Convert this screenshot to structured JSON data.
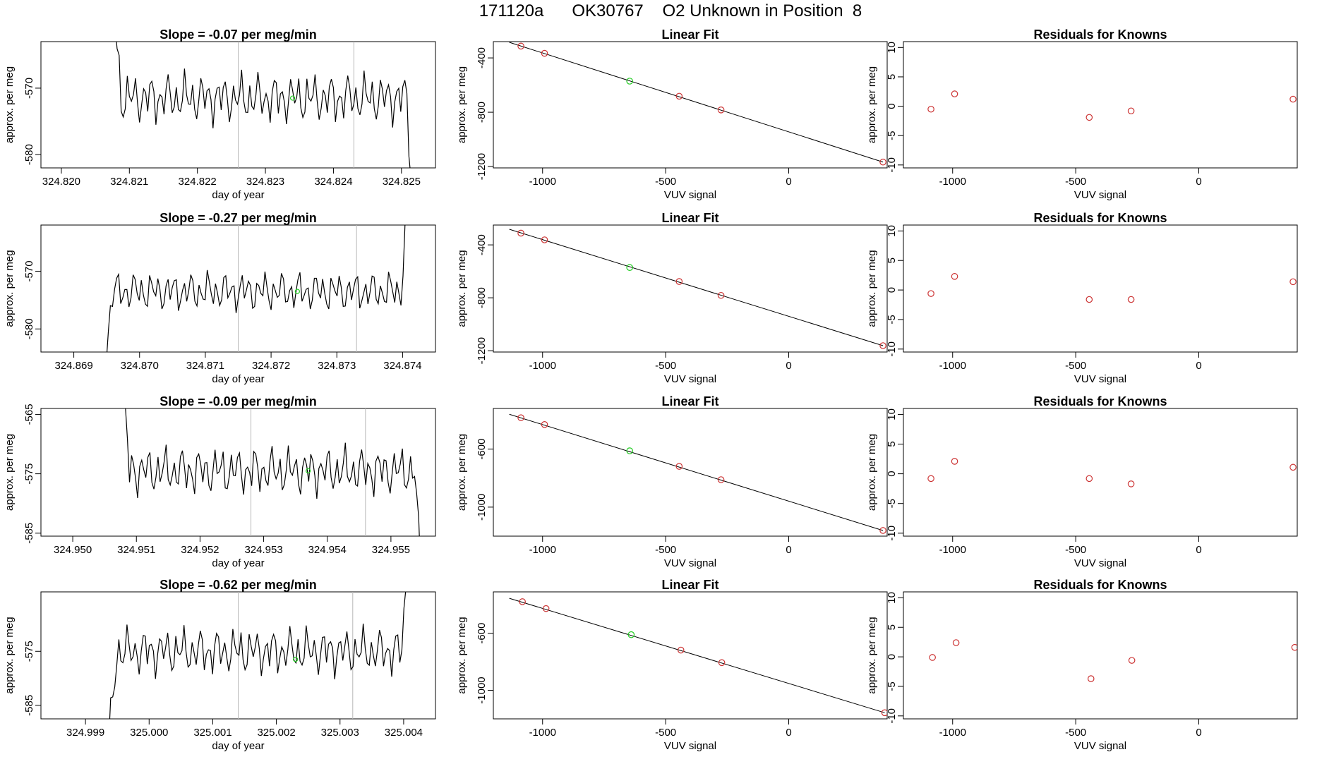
{
  "page": {
    "title": "171120a      OK30767    O2 Unknown in Position  8"
  },
  "colors": {
    "axis": "#000000",
    "line": "#000000",
    "vline": "#b8b8b8",
    "known": "#cc3333",
    "unknown": "#22cc22"
  },
  "labels": {
    "ylabel_left": "approx. per meg",
    "xlabel_time": "day of year",
    "title_fit": "Linear Fit",
    "title_resid": "Residuals for Knowns",
    "xlabel_vuv": "VUV signal"
  },
  "chart_data": [
    {
      "row": 0,
      "time": {
        "type": "line",
        "title": "Slope =  -0.07  per meg/min",
        "xlabel": "day of year",
        "ylabel": "approx. per meg",
        "xlim": [
          324.8197,
          324.8255
        ],
        "ylim": [
          -582,
          -563
        ],
        "xticks": [
          324.82,
          324.821,
          324.822,
          324.823,
          324.824,
          324.825
        ],
        "xtick_labels": [
          "324.820",
          "324.821",
          "324.822",
          "324.823",
          "324.824",
          "324.825"
        ],
        "yticks": [
          -580,
          -570
        ],
        "ytick_labels": [
          "-580",
          "-570"
        ],
        "vlines": [
          324.8226,
          324.8243
        ],
        "trace_start": 324.8207,
        "trace_end": 324.8252,
        "trace_mean": -571.5,
        "trace_amp": 2.4,
        "unknown_point": {
          "x": 324.8234,
          "y": -571.5
        }
      },
      "fit": {
        "type": "scatter",
        "title": "Linear Fit",
        "xlabel": "VUV signal",
        "ylabel": "approx. per meg",
        "xlim": [
          -1200,
          400
        ],
        "ylim": [
          -1210,
          -280
        ],
        "xticks": [
          -1000,
          -500,
          0
        ],
        "xtick_labels": [
          "-1000",
          "-500",
          "0"
        ],
        "yticks": [
          -1200,
          -800,
          -400
        ],
        "ytick_labels": [
          "-1200",
          "-800",
          "-400"
        ],
        "known_x": [
          -1088,
          -992,
          -445,
          -275,
          383
        ],
        "known_y": [
          -313,
          -366,
          -682,
          -783,
          -1167
        ],
        "unknown": {
          "x": -646,
          "y": -571
        },
        "fit_line": {
          "x": [
            -1135,
            383
          ],
          "y": [
            -285,
            -1167
          ]
        }
      },
      "resid": {
        "type": "scatter",
        "title": "Residuals for Knowns",
        "xlabel": "VUV signal",
        "ylabel": "approx. per meg",
        "xlim": [
          -1200,
          400
        ],
        "ylim": [
          -10.5,
          11
        ],
        "xticks": [
          -1000,
          -500,
          0
        ],
        "xtick_labels": [
          "-1000",
          "-500",
          "0"
        ],
        "yticks": [
          -10,
          -5,
          0,
          5,
          10
        ],
        "ytick_labels": [
          "-10",
          "-5",
          "0",
          "5",
          "10"
        ],
        "x": [
          -1088,
          -992,
          -445,
          -275,
          383
        ],
        "y": [
          -0.5,
          2.1,
          -1.9,
          -0.8,
          1.2
        ]
      }
    },
    {
      "row": 1,
      "time": {
        "type": "line",
        "title": "Slope =  -0.27  per meg/min",
        "xlabel": "day of year",
        "ylabel": "approx. per meg",
        "xlim": [
          324.8685,
          324.8745
        ],
        "ylim": [
          -584,
          -562
        ],
        "xticks": [
          324.869,
          324.87,
          324.871,
          324.872,
          324.873,
          324.874
        ],
        "xtick_labels": [
          "324.869",
          "324.870",
          "324.871",
          "324.872",
          "324.873",
          "324.874"
        ],
        "yticks": [
          -580,
          -570
        ],
        "ytick_labels": [
          "-580",
          "-570"
        ],
        "vlines": [
          324.8715,
          324.8733
        ],
        "trace_start": 324.8694,
        "trace_end": 324.8741,
        "trace_mean": -573.5,
        "trace_amp": 2.2,
        "unknown_point": {
          "x": 324.8724,
          "y": -573.5
        }
      },
      "fit": {
        "type": "scatter",
        "title": "Linear Fit",
        "xlabel": "VUV signal",
        "ylabel": "approx. per meg",
        "xlim": [
          -1200,
          400
        ],
        "ylim": [
          -1210,
          -250
        ],
        "xticks": [
          -1000,
          -500,
          0
        ],
        "xtick_labels": [
          "-1000",
          "-500",
          "0"
        ],
        "yticks": [
          -1200,
          -800,
          -400
        ],
        "ytick_labels": [
          "-1200",
          "-800",
          "-400"
        ],
        "known_x": [
          -1088,
          -992,
          -445,
          -275,
          383
        ],
        "known_y": [
          -311,
          -362,
          -677,
          -782,
          -1162
        ],
        "unknown": {
          "x": -646,
          "y": -571
        },
        "fit_line": {
          "x": [
            -1135,
            383
          ],
          "y": [
            -282,
            -1162
          ]
        }
      },
      "resid": {
        "type": "scatter",
        "title": "Residuals for Knowns",
        "xlabel": "VUV signal",
        "ylabel": "approx. per meg",
        "xlim": [
          -1200,
          400
        ],
        "ylim": [
          -10.5,
          11
        ],
        "xticks": [
          -1000,
          -500,
          0
        ],
        "xtick_labels": [
          "-1000",
          "-500",
          "0"
        ],
        "yticks": [
          -10,
          -5,
          0,
          5,
          10
        ],
        "ytick_labels": [
          "-10",
          "-5",
          "0",
          "5",
          "10"
        ],
        "x": [
          -1088,
          -992,
          -445,
          -275,
          383
        ],
        "y": [
          -0.6,
          2.3,
          -1.6,
          -1.6,
          1.4
        ]
      }
    },
    {
      "row": 2,
      "time": {
        "type": "line",
        "title": "Slope =  -0.09  per meg/min",
        "xlabel": "day of year",
        "ylabel": "approx. per meg",
        "xlim": [
          324.9495,
          324.9557
        ],
        "ylim": [
          -585.5,
          -564
        ],
        "xticks": [
          324.95,
          324.951,
          324.952,
          324.953,
          324.954,
          324.955
        ],
        "xtick_labels": [
          "324.950",
          "324.951",
          "324.952",
          "324.953",
          "324.954",
          "324.955"
        ],
        "yticks": [
          -585,
          -575,
          -565
        ],
        "ytick_labels": [
          "-585",
          "-575",
          "-565"
        ],
        "vlines": [
          324.9528,
          324.9546
        ],
        "trace_start": 324.9507,
        "trace_end": 324.9555,
        "trace_mean": -574.5,
        "trace_amp": 2.6,
        "unknown_point": {
          "x": 324.9537,
          "y": -574.5
        }
      },
      "fit": {
        "type": "scatter",
        "title": "Linear Fit",
        "xlabel": "VUV signal",
        "ylabel": "approx. per meg",
        "xlim": [
          -1200,
          400
        ],
        "ylim": [
          -1200,
          -320
        ],
        "xticks": [
          -1000,
          -500,
          0
        ],
        "xtick_labels": [
          "-1000",
          "-500",
          "0"
        ],
        "yticks": [
          -1000,
          -600
        ],
        "ytick_labels": [
          "-1000",
          "-600"
        ],
        "known_x": [
          -1088,
          -992,
          -445,
          -275,
          383
        ],
        "known_y": [
          -384,
          -431,
          -719,
          -811,
          -1161
        ],
        "unknown": {
          "x": -646,
          "y": -612
        },
        "fit_line": {
          "x": [
            -1135,
            383
          ],
          "y": [
            -360,
            -1161
          ]
        }
      },
      "resid": {
        "type": "scatter",
        "title": "Residuals for Knowns",
        "xlabel": "VUV signal",
        "ylabel": "approx. per meg",
        "xlim": [
          -1200,
          400
        ],
        "ylim": [
          -10.5,
          11
        ],
        "xticks": [
          -1000,
          -500,
          0
        ],
        "xtick_labels": [
          "-1000",
          "-500",
          "0"
        ],
        "yticks": [
          -10,
          -5,
          0,
          5,
          10
        ],
        "ytick_labels": [
          "-10",
          "-5",
          "0",
          "5",
          "10"
        ],
        "x": [
          -1088,
          -992,
          -445,
          -275,
          383
        ],
        "y": [
          -0.8,
          2.1,
          -0.8,
          -1.7,
          1.1
        ]
      }
    },
    {
      "row": 3,
      "time": {
        "type": "line",
        "title": "Slope =  -0.62  per meg/min",
        "xlabel": "day of year",
        "ylabel": "approx. per meg",
        "xlim": [
          324.9983,
          325.0045
        ],
        "ylim": [
          -587.5,
          -564
        ],
        "xticks": [
          324.999,
          325.0,
          325.001,
          325.002,
          325.003,
          325.004
        ],
        "xtick_labels": [
          "324.999",
          "325.000",
          "325.001",
          "325.002",
          "325.003",
          "325.004"
        ],
        "yticks": [
          -585,
          -575
        ],
        "ytick_labels": [
          "-585",
          "-575"
        ],
        "vlines": [
          325.0014,
          325.0032
        ],
        "trace_start": 324.9993,
        "trace_end": 325.0041,
        "trace_mean": -575.0,
        "trace_amp": 2.8,
        "unknown_point": {
          "x": 325.0023,
          "y": -576.5
        }
      },
      "fit": {
        "type": "scatter",
        "title": "Linear Fit",
        "xlabel": "VUV signal",
        "ylabel": "approx. per meg",
        "xlim": [
          -1200,
          400
        ],
        "ylim": [
          -1200,
          -310
        ],
        "xticks": [
          -1000,
          -500,
          0
        ],
        "xtick_labels": [
          "-1000",
          "-500",
          "0"
        ],
        "yticks": [
          -1000,
          -600
        ],
        "ytick_labels": [
          "-1000",
          "-600"
        ],
        "known_x": [
          -1082,
          -986,
          -438,
          -272,
          390
        ],
        "known_y": [
          -379,
          -427,
          -718,
          -806,
          -1157
        ],
        "unknown": {
          "x": -640,
          "y": -610
        },
        "fit_line": {
          "x": [
            -1135,
            390
          ],
          "y": [
            -355,
            -1157
          ]
        }
      },
      "resid": {
        "type": "scatter",
        "title": "Residuals for Knowns",
        "xlabel": "VUV signal",
        "ylabel": "approx. per meg",
        "xlim": [
          -1200,
          400
        ],
        "ylim": [
          -10.5,
          11
        ],
        "xticks": [
          -1000,
          -500,
          0
        ],
        "xtick_labels": [
          "-1000",
          "-500",
          "0"
        ],
        "yticks": [
          -10,
          -5,
          0,
          5,
          10
        ],
        "ytick_labels": [
          "-10",
          "-5",
          "0",
          "5",
          "10"
        ],
        "x": [
          -1082,
          -986,
          -438,
          -272,
          390
        ],
        "y": [
          -0.1,
          2.4,
          -3.7,
          -0.6,
          1.6
        ]
      }
    }
  ]
}
